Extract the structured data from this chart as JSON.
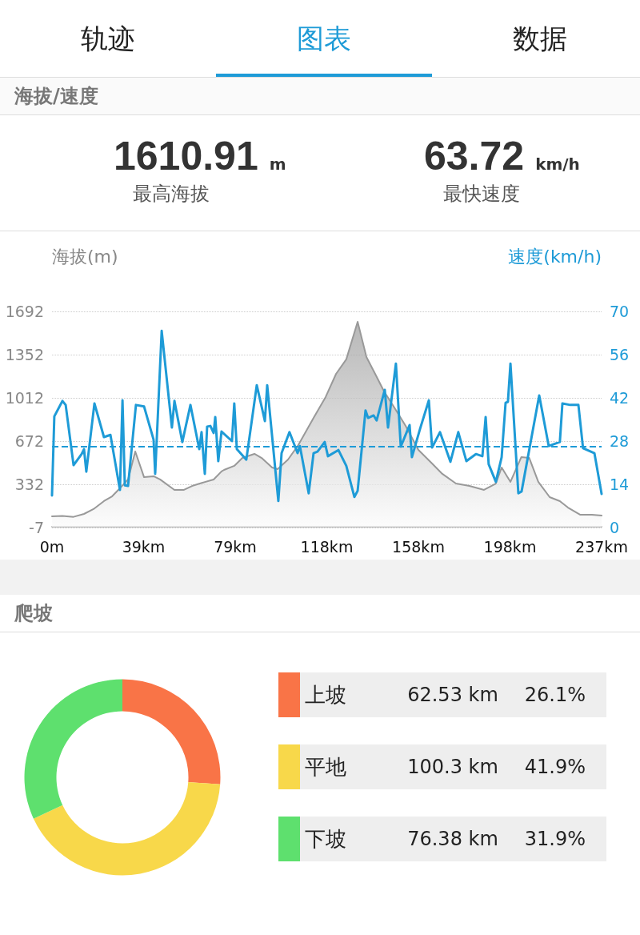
{
  "chart_data": [
    {
      "type": "other",
      "title": "海拔/速度",
      "annotations": [
        "轨迹",
        "图表",
        "数据",
        "1610.91",
        "m",
        "最高海拔",
        "63.72",
        "km/h",
        "最快速度"
      ]
    },
    {
      "type": "line",
      "ylabel": "海拔(m)",
      "y2label": "速度(km/h)",
      "xlim": [
        0,
        237
      ],
      "xticks": [
        {
          "value": 0,
          "label": "0m"
        },
        {
          "value": 39.5,
          "label": "39km"
        },
        {
          "value": 79,
          "label": "79km"
        },
        {
          "value": 118.5,
          "label": "118km"
        },
        {
          "value": 158,
          "label": "158km"
        },
        {
          "value": 197.5,
          "label": "198km"
        },
        {
          "value": 237,
          "label": "237km"
        }
      ],
      "ylim": [
        -7,
        1692
      ],
      "yticks": [
        -7,
        332,
        672,
        1012,
        1352,
        1692
      ],
      "y2lim": [
        0,
        70
      ],
      "y2ticks": [
        0,
        14,
        28,
        42,
        56,
        70
      ],
      "grid": "y",
      "legend": false,
      "marker": "none",
      "line_style": "solid",
      "series": [
        {
          "type": "area",
          "color": "#999999",
          "x": [
            0,
            4.5,
            9.3,
            13.8,
            17.9,
            22.4,
            25.9,
            28.6,
            32.8,
            35.9,
            39.7,
            43.8,
            46.6,
            52.8,
            56.9,
            60.4,
            64.9,
            69.7,
            73.1,
            74.2,
            78.6,
            82.1,
            87.3,
            90.4,
            94.9,
            97.3,
            101.8,
            106.2,
            112.8,
            118,
            122.5,
            126.9,
            131.8,
            135.6,
            139.7,
            143.2,
            147.6,
            152.5,
            158,
            163.9,
            168.3,
            174.2,
            180,
            186.3,
            191.4,
            193.9,
            197.7,
            202.4,
            205.8,
            209.7,
            214.6,
            219,
            222.5,
            227.7,
            232.8,
            237
          ],
          "values": [
            81,
            85,
            77,
            100,
            138,
            201,
            238,
            289,
            371,
            591,
            389,
            396,
            371,
            289,
            289,
            320,
            345,
            371,
            434,
            446,
            478,
            540,
            572,
            540,
            465,
            452,
            528,
            641,
            855,
            1019,
            1201,
            1315,
            1610,
            1333,
            1189,
            1063,
            937,
            792,
            603,
            496,
            415,
            339,
            320,
            289,
            339,
            465,
            352,
            547,
            540,
            352,
            232,
            201,
            150,
            94,
            94,
            87
          ]
        },
        {
          "type": "line",
          "color": "#1e9bd7",
          "axis": "y2",
          "x": [
            0,
            1,
            4.5,
            5.9,
            9.3,
            12.8,
            13.8,
            14.8,
            18.3,
            22.4,
            25.2,
            29.3,
            30.4,
            31.4,
            32.8,
            36.2,
            39.7,
            43.8,
            44.5,
            47.3,
            51.7,
            52.8,
            56.2,
            59.7,
            63.5,
            64.5,
            65.9,
            66.9,
            68.3,
            69.7,
            70.4,
            71.7,
            73.1,
            77.6,
            78.6,
            79.7,
            83.8,
            88.3,
            91.8,
            92.8,
            97.6,
            99,
            102.4,
            105.9,
            106.9,
            110.7,
            112.8,
            114.5,
            117.6,
            119,
            123.5,
            126.9,
            130.4,
            131.8,
            135.2,
            136.3,
            138.7,
            140,
            143.5,
            144.9,
            148.3,
            150.4,
            154.2,
            155.2,
            158.7,
            162.5,
            163.9,
            167.3,
            171.8,
            175.2,
            178.7,
            182.8,
            185.6,
            187,
            188.3,
            191.4,
            193.9,
            195.6,
            196.6,
            197.7,
            201.1,
            202.5,
            210.1,
            214.2,
            219,
            220.1,
            223.5,
            227,
            229,
            233.9,
            237
          ],
          "values": [
            10.4,
            36,
            41,
            39.7,
            20.2,
            23.8,
            25.4,
            18.1,
            40.2,
            29.3,
            30,
            12.2,
            41.2,
            13.7,
            13.5,
            39.7,
            39.2,
            28.5,
            17.4,
            63.7,
            32.4,
            41,
            27.7,
            39.7,
            25.4,
            30.9,
            17.4,
            32.7,
            32.9,
            30.6,
            35.8,
            21.5,
            31.1,
            28,
            40.2,
            25.4,
            22,
            46.1,
            34.5,
            46.1,
            8.6,
            24.1,
            30.9,
            24.1,
            26.4,
            11.1,
            24.1,
            24.6,
            27.7,
            23.1,
            25.1,
            20,
            9.9,
            11.9,
            37.9,
            35.5,
            36.3,
            34.7,
            44.6,
            32.4,
            53.1,
            26.2,
            33.2,
            22.8,
            31.9,
            41.2,
            25.9,
            30.9,
            21.3,
            30.9,
            21.5,
            23.8,
            23.1,
            35.8,
            20.5,
            14.8,
            22.8,
            40.4,
            40.7,
            53.1,
            11.1,
            11.7,
            42.8,
            26.4,
            27.7,
            40.2,
            39.7,
            39.7,
            25.7,
            24.1,
            10.9
          ]
        }
      ],
      "ref_lines": [
        {
          "axis": "y2",
          "value": 26.2,
          "color": "#1e9bd7",
          "line_style": "dashed"
        }
      ]
    },
    {
      "type": "donut",
      "title": "爬坡",
      "categories": [
        "上坡",
        "平地",
        "下坡"
      ],
      "values": [
        62.53,
        100.3,
        76.38
      ],
      "colors": [
        "#f97447",
        "#f8d84a",
        "#5ee06e"
      ],
      "value_labels": [
        "62.53 km",
        "100.3 km",
        "76.38 km"
      ],
      "annotations": [
        "26.1%",
        "41.9%",
        "31.9%"
      ],
      "legend": "right"
    }
  ]
}
